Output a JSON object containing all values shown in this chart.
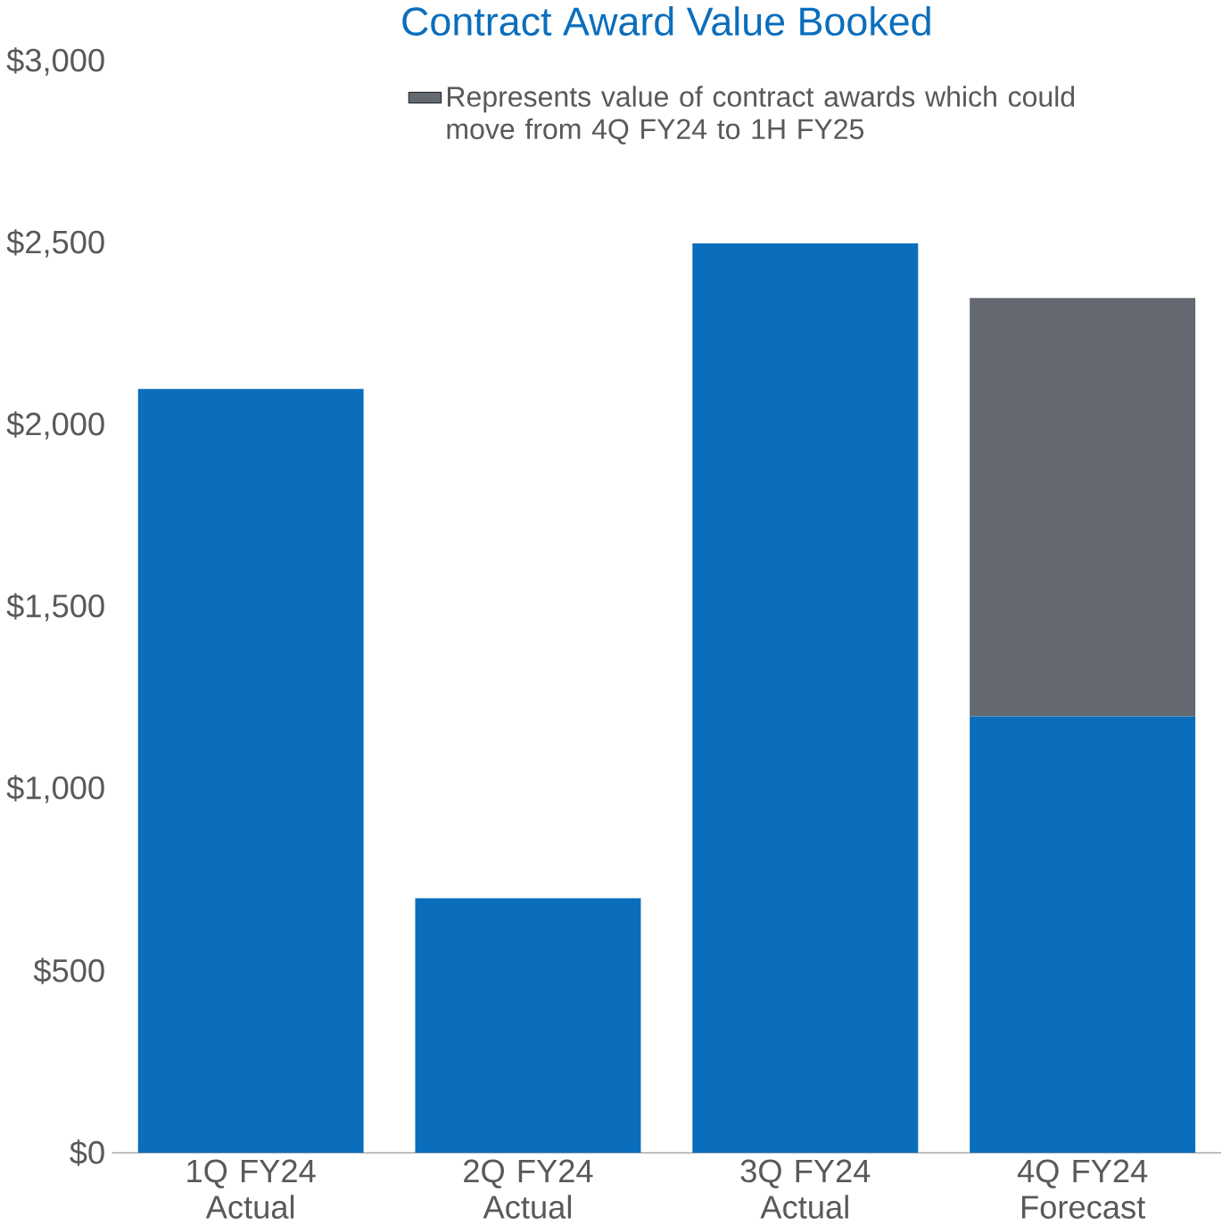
{
  "chart_data": {
    "type": "bar",
    "title": "Contract Award Value Booked",
    "categories": [
      "1Q FY24 Actual",
      "2Q FY24 Actual",
      "3Q FY24 Actual",
      "4Q FY24 Forecast"
    ],
    "stacked": true,
    "series": [
      {
        "color": "#0a6ebd",
        "values": [
          2100,
          700,
          2500,
          1200
        ]
      },
      {
        "name": "Represents value of contract awards which could move from 4Q FY24 to 1H FY25",
        "color": "#636871",
        "values": [
          null,
          null,
          null,
          1150
        ]
      }
    ],
    "ylim": [
      0,
      3000
    ],
    "yticks": [
      {
        "value": 0,
        "label": "$0"
      },
      {
        "value": 500,
        "label": "$500"
      },
      {
        "value": 1000,
        "label": "$1,000"
      },
      {
        "value": 1500,
        "label": "$1,500"
      },
      {
        "value": 2000,
        "label": "$2,000"
      },
      {
        "value": 2500,
        "label": "$2,500"
      },
      {
        "value": 3000,
        "label": "$3,000"
      }
    ],
    "legend": "top"
  }
}
